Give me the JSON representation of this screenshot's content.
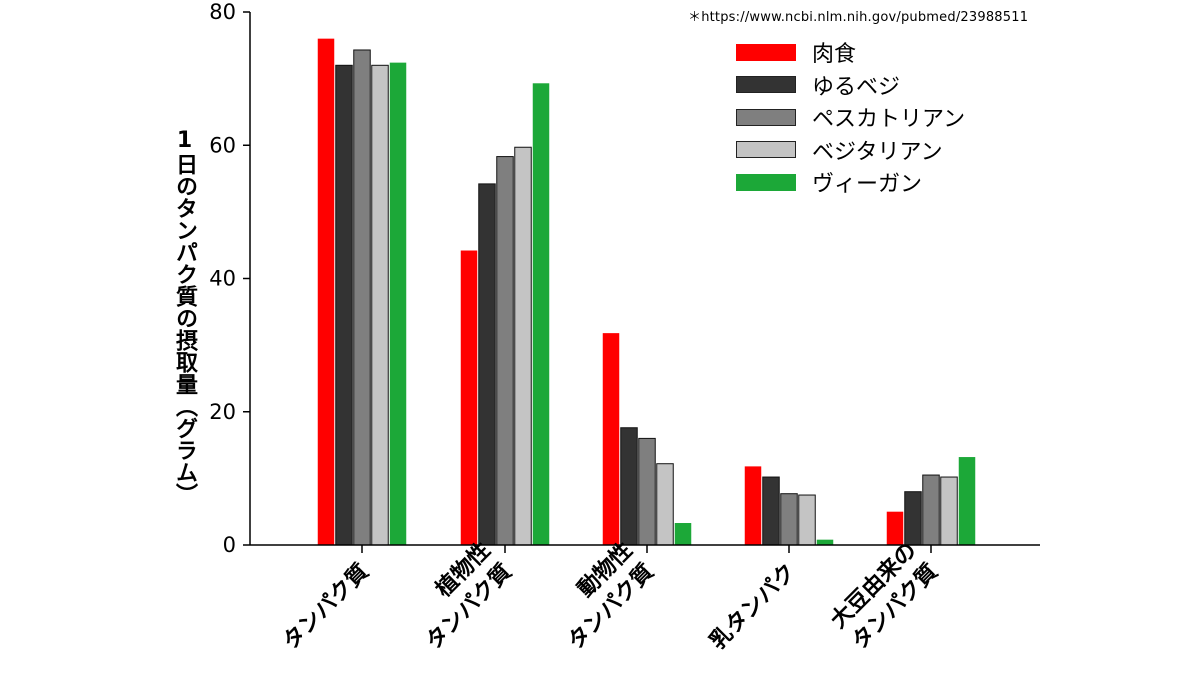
{
  "source_note": "＊https://www.ncbi.nlm.nih.gov/pubmed/23988511",
  "chart_data": {
    "type": "bar",
    "ylabel": "1日のタンパク質の摂取量（グラム）",
    "xlabel": "",
    "ylim": [
      0,
      80
    ],
    "yticks": [
      0,
      20,
      40,
      60,
      80
    ],
    "grid": false,
    "legend_position": "top-right",
    "categories": [
      [
        "タンパク質"
      ],
      [
        "植物性",
        "タンパク質"
      ],
      [
        "動物性",
        "タンパク質"
      ],
      [
        "乳タンパク"
      ],
      [
        "大豆由来の",
        "タンパク質"
      ]
    ],
    "series": [
      {
        "name": "肉食",
        "color": "#ff0000",
        "values": [
          76,
          44.2,
          31.8,
          11.8,
          5.0
        ]
      },
      {
        "name": "ゆるベジ",
        "color": "#333333",
        "values": [
          72,
          54.2,
          17.6,
          10.2,
          8.0
        ]
      },
      {
        "name": "ペスカトリアン",
        "color": "#7f7f7f",
        "values": [
          74.3,
          58.3,
          16.0,
          7.7,
          10.5
        ]
      },
      {
        "name": "ベジタリアン",
        "color": "#c4c4c4",
        "values": [
          72,
          59.7,
          12.2,
          7.5,
          10.2
        ]
      },
      {
        "name": "ヴィーガン",
        "color": "#1ca838",
        "values": [
          72.4,
          69.3,
          3.3,
          0.8,
          13.2
        ]
      }
    ]
  }
}
